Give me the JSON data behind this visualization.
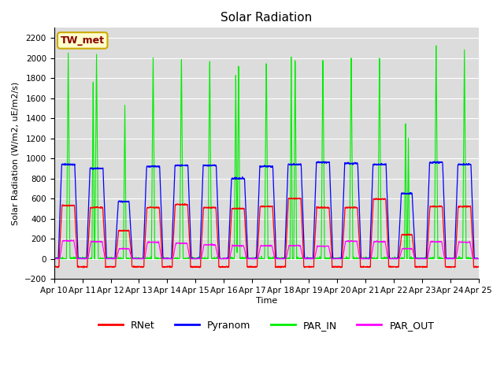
{
  "title": "Solar Radiation",
  "ylabel": "Solar Radiation (W/m2, uE/m2/s)",
  "xlabel": "Time",
  "ylim": [
    -200,
    2300
  ],
  "yticks": [
    -200,
    0,
    200,
    400,
    600,
    800,
    1000,
    1200,
    1400,
    1600,
    1800,
    2000,
    2200
  ],
  "xtick_labels": [
    "Apr 10",
    "Apr 11",
    "Apr 12",
    "Apr 13",
    "Apr 14",
    "Apr 15",
    "Apr 16",
    "Apr 17",
    "Apr 18",
    "Apr 19",
    "Apr 20",
    "Apr 21",
    "Apr 22",
    "Apr 23",
    "Apr 24",
    "Apr 25"
  ],
  "station_label": "TW_met",
  "colors": {
    "RNet": "#ff0000",
    "Pyranom": "#0000ff",
    "PAR_IN": "#00ee00",
    "PAR_OUT": "#ff00ff"
  },
  "background_color": "#dcdcdc",
  "title_fontsize": 11,
  "label_fontsize": 8,
  "tick_fontsize": 7.5,
  "legend_fontsize": 9
}
